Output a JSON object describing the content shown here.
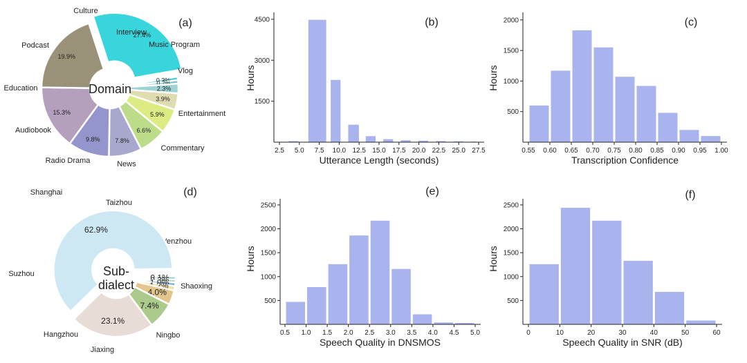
{
  "chart_data": [
    {
      "type": "pie",
      "panel_label": "(a)",
      "center_label": "Domain",
      "categories": [
        "Culture",
        "Interview",
        "Music Program",
        "Vlog",
        "Entertainment",
        "Commentary",
        "News",
        "Radio Drama",
        "Audiobook",
        "Education",
        "Podcast"
      ],
      "value_labels": [
        "27.4%",
        "0.3%",
        "0.7%",
        "2.3%",
        "3.9%",
        "5.9%",
        "6.6%",
        "7.8%",
        "9.8%",
        "15.3%",
        "19.9%"
      ],
      "values": [
        27.4,
        0.3,
        0.7,
        2.3,
        3.9,
        5.9,
        6.6,
        7.8,
        9.8,
        15.3,
        19.9
      ],
      "colors": [
        "#38d6dc",
        "#46cfd4",
        "#82c2c2",
        "#9dd3d3",
        "#dedcb0",
        "#dcec82",
        "#bcdc8a",
        "#a8a8ce",
        "#9595cd",
        "#b49fbd",
        "#9a9278"
      ],
      "exploded": [
        "Culture"
      ]
    },
    {
      "type": "bar",
      "panel_label": "(b)",
      "xlabel": "Utterance Length (seconds)",
      "ylabel": "Hours",
      "x_ticks": [
        "2.5",
        "5.0",
        "7.5",
        "10.0",
        "12.5",
        "15.0",
        "17.5",
        "20.0",
        "22.5",
        "25.0",
        "27.5"
      ],
      "y_ticks": [
        "1500",
        "3000",
        "4500"
      ],
      "x_range": [
        2.5,
        27.5
      ],
      "ylim": [
        0,
        4700
      ],
      "bins": [
        [
          3.5,
          5.0
        ],
        [
          6.0,
          8.5
        ],
        [
          8.8,
          10.3
        ],
        [
          11.0,
          12.6
        ],
        [
          13.2,
          14.7
        ],
        [
          15.4,
          16.9
        ],
        [
          17.6,
          19.1
        ],
        [
          19.8,
          21.3
        ],
        [
          22.0,
          23.5
        ],
        [
          24.2,
          25.7
        ],
        [
          26.4,
          27.3
        ]
      ],
      "values": [
        40,
        4480,
        2280,
        640,
        220,
        110,
        70,
        55,
        40,
        30,
        22
      ],
      "color": "#a9b4ee"
    },
    {
      "type": "bar",
      "panel_label": "(c)",
      "xlabel": "Transcription Confidence",
      "ylabel": "Hours",
      "x_ticks": [
        "0.55",
        "0.60",
        "0.65",
        "0.70",
        "0.75",
        "0.80",
        "0.85",
        "0.90",
        "0.95",
        "1.00"
      ],
      "y_ticks": [
        "500",
        "1000",
        "1500",
        "2000"
      ],
      "x_range": [
        0.55,
        1.0
      ],
      "ylim": [
        0,
        2100
      ],
      "bins": [
        [
          0.55,
          0.6
        ],
        [
          0.6,
          0.65
        ],
        [
          0.65,
          0.7
        ],
        [
          0.7,
          0.75
        ],
        [
          0.75,
          0.8
        ],
        [
          0.8,
          0.85
        ],
        [
          0.85,
          0.9
        ],
        [
          0.9,
          0.95
        ],
        [
          0.95,
          1.0
        ]
      ],
      "values": [
        600,
        1170,
        1830,
        1550,
        1070,
        920,
        480,
        200,
        100
      ],
      "color": "#a9b4ee"
    },
    {
      "type": "pie",
      "panel_label": "(d)",
      "center_label": "Sub-\ndialect",
      "categories": [
        "Taizhou",
        "Wenzhou",
        "Shaoxing",
        "Ningbo",
        "Jiaxing",
        "Hangzhou",
        "Suzhou",
        "Shanghai"
      ],
      "value_labels": [
        "0.1%",
        "0.3%",
        "1.0%",
        "1.2%",
        "4.0%",
        "7.4%",
        "23.1%",
        "62.9%"
      ],
      "values": [
        0.1,
        0.3,
        1.0,
        1.2,
        4.0,
        7.4,
        23.1,
        62.9
      ],
      "colors": [
        "#87cfc0",
        "#a7d8bf",
        "#7fb0d6",
        "#f0e0a2",
        "#e3c58e",
        "#abca8b",
        "#e7ddd6",
        "#cde8f3"
      ],
      "exploded": [
        "Shanghai"
      ]
    },
    {
      "type": "bar",
      "panel_label": "(e)",
      "xlabel": "Speech Quality in DNSMOS",
      "ylabel": "Hours",
      "x_ticks": [
        "0.5",
        "1.0",
        "1.5",
        "2.0",
        "2.5",
        "3.0",
        "3.5",
        "4.0",
        "4.5",
        "5.0"
      ],
      "y_ticks": [
        "500",
        "1000",
        "1500",
        "2000",
        "2500"
      ],
      "x_range": [
        0.5,
        5.0
      ],
      "ylim": [
        0,
        2600
      ],
      "bins": [
        [
          0.5,
          1.0
        ],
        [
          1.0,
          1.5
        ],
        [
          1.5,
          2.0
        ],
        [
          2.0,
          2.5
        ],
        [
          2.5,
          3.0
        ],
        [
          3.0,
          3.5
        ],
        [
          3.5,
          4.0
        ],
        [
          4.0,
          4.5
        ],
        [
          4.5,
          5.0
        ]
      ],
      "values": [
        470,
        780,
        1260,
        1860,
        2170,
        1160,
        210,
        40,
        30
      ],
      "color": "#a9b4ee"
    },
    {
      "type": "bar",
      "panel_label": "(f)",
      "xlabel": "Speech Quality in SNR (dB)",
      "ylabel": "Hours",
      "x_ticks": [
        "0",
        "10",
        "20",
        "30",
        "40",
        "50",
        "60"
      ],
      "y_ticks": [
        "500",
        "1000",
        "1500",
        "2000",
        "2500"
      ],
      "x_range": [
        0,
        60
      ],
      "ylim": [
        0,
        2600
      ],
      "bins": [
        [
          0,
          10
        ],
        [
          10,
          20
        ],
        [
          20,
          30
        ],
        [
          30,
          40
        ],
        [
          40,
          50
        ],
        [
          50,
          60
        ]
      ],
      "values": [
        1260,
        2440,
        2170,
        1330,
        680,
        80
      ],
      "color": "#a9b4ee"
    }
  ]
}
